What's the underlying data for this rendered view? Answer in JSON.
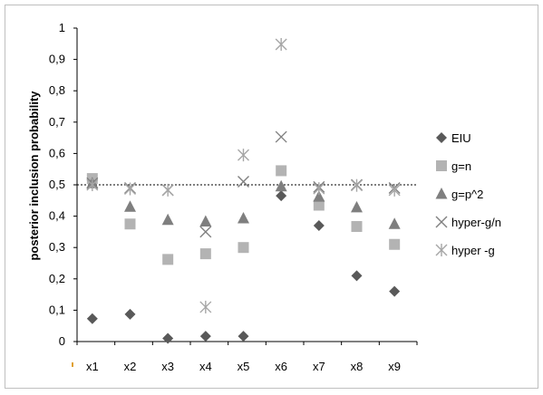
{
  "chart_data": {
    "type": "scatter",
    "ylabel": "posterior inclusion  probability",
    "xlabel": "",
    "title": "",
    "categories": [
      "x1",
      "x2",
      "x3",
      "x4",
      "x5",
      "x6",
      "x7",
      "x8",
      "x9"
    ],
    "yticks": [
      "0",
      "0,1",
      "0,2",
      "0,3",
      "0,4",
      "0,5",
      "0,6",
      "0,7",
      "0,8",
      "0,9",
      "1"
    ],
    "ylim": [
      0,
      1
    ],
    "reference_line": 0.5,
    "legend_position": "right",
    "grid": false,
    "series": [
      {
        "name": "EIU",
        "marker": "diamond",
        "color": "#595959",
        "values": [
          0.073,
          0.087,
          0.01,
          0.017,
          0.017,
          0.465,
          0.37,
          0.21,
          0.16
        ]
      },
      {
        "name": "g=n",
        "marker": "square",
        "color": "#b3b3b3",
        "values": [
          0.52,
          0.375,
          0.262,
          0.28,
          0.3,
          0.545,
          0.435,
          0.367,
          0.31
        ]
      },
      {
        "name": "g=p^2",
        "marker": "triangle",
        "color": "#7f7f7f",
        "values": [
          0.505,
          0.43,
          0.388,
          0.383,
          0.393,
          0.495,
          0.462,
          0.428,
          0.375
        ]
      },
      {
        "name": "hyper-g/n",
        "marker": "x",
        "color": "#808080",
        "values": [
          0.505,
          0.49,
          0.483,
          0.35,
          0.51,
          0.653,
          0.493,
          0.5,
          0.49
        ]
      },
      {
        "name": "hyper -g",
        "marker": "asterisk",
        "color": "#a6a6a6",
        "values": [
          0.5,
          0.487,
          0.483,
          0.11,
          0.595,
          0.948,
          0.488,
          0.498,
          0.483
        ]
      }
    ]
  }
}
